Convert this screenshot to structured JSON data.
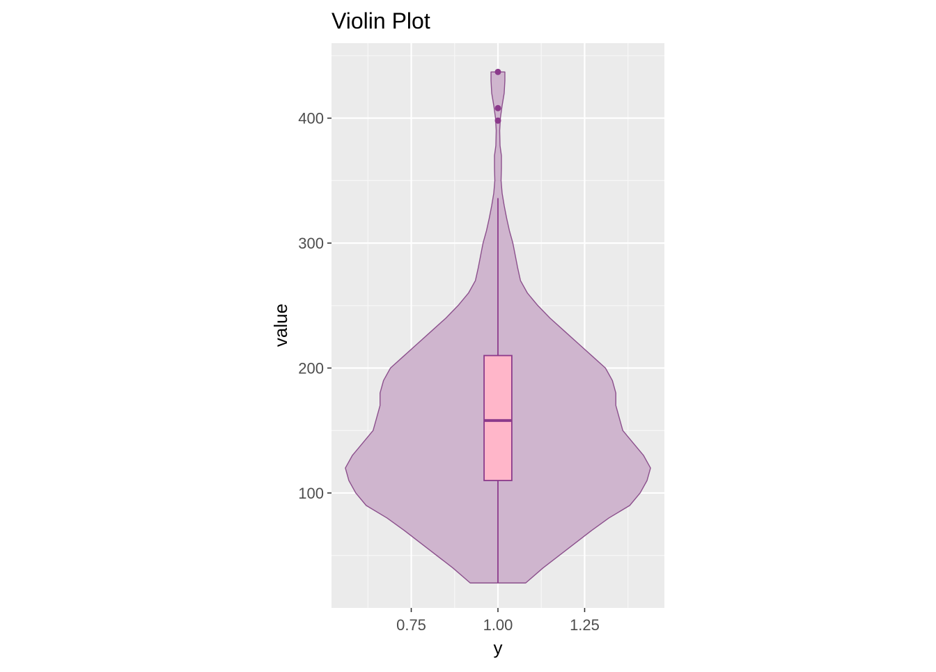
{
  "chart_data": {
    "type": "violin",
    "title": "Violin Plot",
    "xlabel": "y",
    "ylabel": "value",
    "x_position": 1.0,
    "xlim": [
      0.52,
      1.48
    ],
    "ylim": [
      8,
      460
    ],
    "x_ticks": [
      0.75,
      1.0,
      1.25
    ],
    "x_tick_labels": [
      "0.75",
      "1.00",
      "1.25"
    ],
    "y_ticks": [
      100,
      200,
      300,
      400
    ],
    "y_tick_labels": [
      "100",
      "200",
      "300",
      "400"
    ],
    "grid": true,
    "legend": "none",
    "violin": {
      "y_min": 28,
      "y_max": 437,
      "profile": [
        [
          28,
          0.08
        ],
        [
          40,
          0.13
        ],
        [
          55,
          0.2
        ],
        [
          70,
          0.27
        ],
        [
          80,
          0.32
        ],
        [
          90,
          0.38
        ],
        [
          100,
          0.41
        ],
        [
          110,
          0.43
        ],
        [
          120,
          0.44
        ],
        [
          130,
          0.42
        ],
        [
          140,
          0.39
        ],
        [
          150,
          0.36
        ],
        [
          160,
          0.35
        ],
        [
          170,
          0.34
        ],
        [
          180,
          0.34
        ],
        [
          190,
          0.33
        ],
        [
          200,
          0.31
        ],
        [
          210,
          0.27
        ],
        [
          220,
          0.23
        ],
        [
          230,
          0.19
        ],
        [
          240,
          0.15
        ],
        [
          250,
          0.115
        ],
        [
          260,
          0.085
        ],
        [
          270,
          0.065
        ],
        [
          280,
          0.057
        ],
        [
          290,
          0.05
        ],
        [
          300,
          0.043
        ],
        [
          310,
          0.033
        ],
        [
          320,
          0.025
        ],
        [
          330,
          0.018
        ],
        [
          340,
          0.012
        ],
        [
          350,
          0.009
        ],
        [
          360,
          0.01
        ],
        [
          370,
          0.01
        ],
        [
          378,
          0.006
        ],
        [
          390,
          0.005
        ],
        [
          400,
          0.007
        ],
        [
          410,
          0.012
        ],
        [
          420,
          0.018
        ],
        [
          430,
          0.02
        ],
        [
          437,
          0.02
        ]
      ]
    },
    "boxplot": {
      "q1": 110,
      "median": 158,
      "q3": 210,
      "whisker_low": 28,
      "whisker_high": 336,
      "box_half_width": 0.04,
      "outliers": [
        398,
        408,
        437
      ]
    },
    "colors": {
      "panel_background": "#ebebeb",
      "grid_major": "#ffffff",
      "grid_minor": "#f7f7f7",
      "violin_fill": "#cfb5ce",
      "violin_outline": "#8b4f8c",
      "box_fill": "#ffb6c9",
      "box_outline": "#8b3a8b",
      "outlier": "#8b3a8b"
    }
  }
}
